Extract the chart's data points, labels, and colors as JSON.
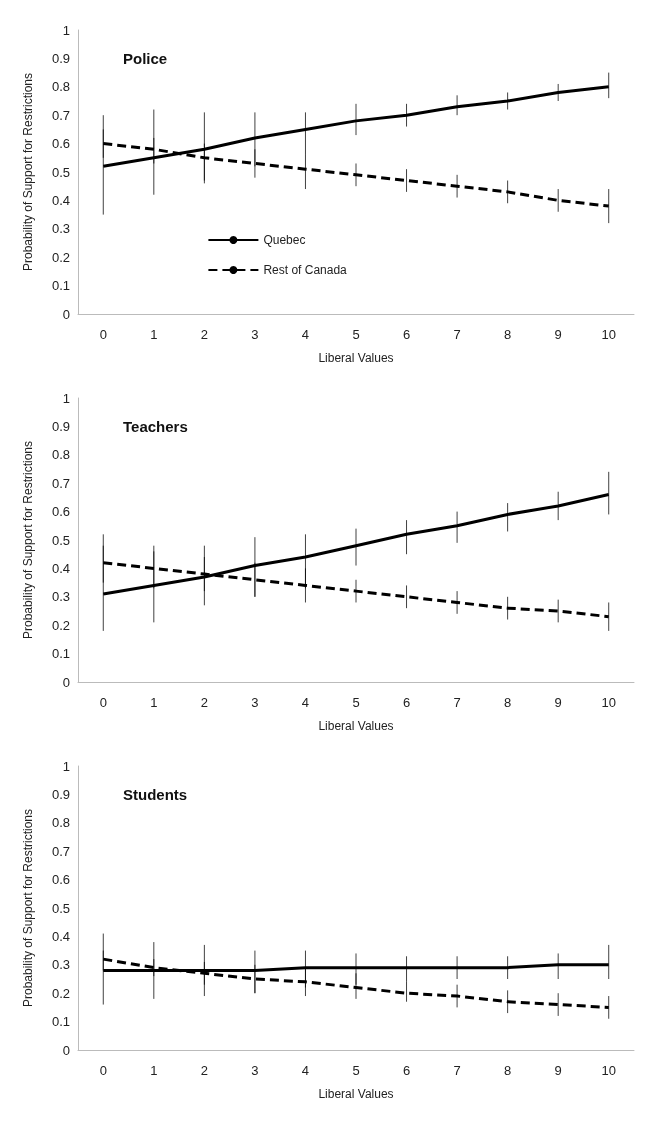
{
  "chart_data": [
    {
      "type": "line",
      "title": "Police",
      "xlabel": "Liberal Values",
      "ylabel": "Probability of Support for Restrictions",
      "categories": [
        "0",
        "1",
        "2",
        "3",
        "4",
        "5",
        "6",
        "7",
        "8",
        "9",
        "10"
      ],
      "ylim": [
        0,
        1
      ],
      "yticks": [
        0,
        0.1,
        0.2,
        0.3,
        0.4,
        0.5,
        0.6,
        0.7,
        0.8,
        0.9,
        1
      ],
      "legend": "bottom left",
      "series": [
        {
          "name": "Quebec",
          "color": "#000000",
          "line_style": "solid",
          "values": [
            0.52,
            0.55,
            0.58,
            0.62,
            0.65,
            0.68,
            0.7,
            0.73,
            0.75,
            0.78,
            0.8
          ],
          "errors": [
            [
              0.35,
              0.7
            ],
            [
              0.42,
              0.72
            ],
            [
              0.47,
              0.71
            ],
            [
              0.52,
              0.71
            ],
            [
              0.56,
              0.71
            ],
            [
              0.63,
              0.74
            ],
            [
              0.66,
              0.74
            ],
            [
              0.7,
              0.77
            ],
            [
              0.72,
              0.78
            ],
            [
              0.75,
              0.81
            ],
            [
              0.76,
              0.85
            ]
          ]
        },
        {
          "name": "Rest of Canada",
          "color": "#000000",
          "line_style": "dashed",
          "values": [
            0.6,
            0.58,
            0.55,
            0.53,
            0.51,
            0.49,
            0.47,
            0.45,
            0.43,
            0.4,
            0.38
          ],
          "errors": [
            [
              0.55,
              0.65
            ],
            [
              0.53,
              0.62
            ],
            [
              0.46,
              0.6
            ],
            [
              0.48,
              0.58
            ],
            [
              0.44,
              0.56
            ],
            [
              0.45,
              0.53
            ],
            [
              0.43,
              0.51
            ],
            [
              0.41,
              0.49
            ],
            [
              0.39,
              0.47
            ],
            [
              0.36,
              0.44
            ],
            [
              0.32,
              0.44
            ]
          ]
        }
      ]
    },
    {
      "type": "line",
      "title": "Teachers",
      "xlabel": "Liberal Values",
      "ylabel": "Probability of Support for Restrictions",
      "categories": [
        "0",
        "1",
        "2",
        "3",
        "4",
        "5",
        "6",
        "7",
        "8",
        "9",
        "10"
      ],
      "ylim": [
        0,
        1
      ],
      "yticks": [
        0,
        0.1,
        0.2,
        0.3,
        0.4,
        0.5,
        0.6,
        0.7,
        0.8,
        0.9,
        1
      ],
      "series": [
        {
          "color": "#000000",
          "line_style": "solid",
          "values": [
            0.31,
            0.34,
            0.37,
            0.41,
            0.44,
            0.48,
            0.52,
            0.55,
            0.59,
            0.62,
            0.66
          ],
          "errors": [
            [
              0.18,
              0.52
            ],
            [
              0.21,
              0.48
            ],
            [
              0.27,
              0.48
            ],
            [
              0.3,
              0.51
            ],
            [
              0.33,
              0.52
            ],
            [
              0.41,
              0.54
            ],
            [
              0.45,
              0.57
            ],
            [
              0.49,
              0.6
            ],
            [
              0.53,
              0.63
            ],
            [
              0.57,
              0.67
            ],
            [
              0.59,
              0.74
            ]
          ]
        },
        {
          "color": "#000000",
          "line_style": "dashed",
          "values": [
            0.42,
            0.4,
            0.38,
            0.36,
            0.34,
            0.32,
            0.3,
            0.28,
            0.26,
            0.25,
            0.23
          ],
          "errors": [
            [
              0.35,
              0.48
            ],
            [
              0.33,
              0.46
            ],
            [
              0.32,
              0.44
            ],
            [
              0.3,
              0.42
            ],
            [
              0.28,
              0.4
            ],
            [
              0.28,
              0.36
            ],
            [
              0.26,
              0.34
            ],
            [
              0.24,
              0.32
            ],
            [
              0.22,
              0.3
            ],
            [
              0.21,
              0.29
            ],
            [
              0.18,
              0.28
            ]
          ]
        }
      ]
    },
    {
      "type": "line",
      "title": "Students",
      "xlabel": "Liberal Values",
      "ylabel": "Probability of Support for Restrictions",
      "categories": [
        "0",
        "1",
        "2",
        "3",
        "4",
        "5",
        "6",
        "7",
        "8",
        "9",
        "10"
      ],
      "ylim": [
        0,
        1
      ],
      "yticks": [
        0,
        0.1,
        0.2,
        0.3,
        0.4,
        0.5,
        0.6,
        0.7,
        0.8,
        0.9,
        1
      ],
      "series": [
        {
          "color": "#000000",
          "line_style": "solid",
          "values": [
            0.28,
            0.28,
            0.28,
            0.28,
            0.29,
            0.29,
            0.29,
            0.29,
            0.29,
            0.3,
            0.3
          ],
          "errors": [
            [
              0.16,
              0.41
            ],
            [
              0.18,
              0.38
            ],
            [
              0.19,
              0.37
            ],
            [
              0.2,
              0.35
            ],
            [
              0.22,
              0.35
            ],
            [
              0.23,
              0.34
            ],
            [
              0.24,
              0.33
            ],
            [
              0.25,
              0.33
            ],
            [
              0.25,
              0.33
            ],
            [
              0.25,
              0.34
            ],
            [
              0.25,
              0.37
            ]
          ]
        },
        {
          "color": "#000000",
          "line_style": "dashed",
          "values": [
            0.32,
            0.29,
            0.27,
            0.25,
            0.24,
            0.22,
            0.2,
            0.19,
            0.17,
            0.16,
            0.15
          ],
          "errors": [
            [
              0.28,
              0.35
            ],
            [
              0.26,
              0.32
            ],
            [
              0.23,
              0.31
            ],
            [
              0.2,
              0.3
            ],
            [
              0.19,
              0.29
            ],
            [
              0.18,
              0.27
            ],
            [
              0.17,
              0.24
            ],
            [
              0.15,
              0.23
            ],
            [
              0.13,
              0.21
            ],
            [
              0.12,
              0.2
            ],
            [
              0.11,
              0.19
            ]
          ]
        }
      ]
    }
  ]
}
